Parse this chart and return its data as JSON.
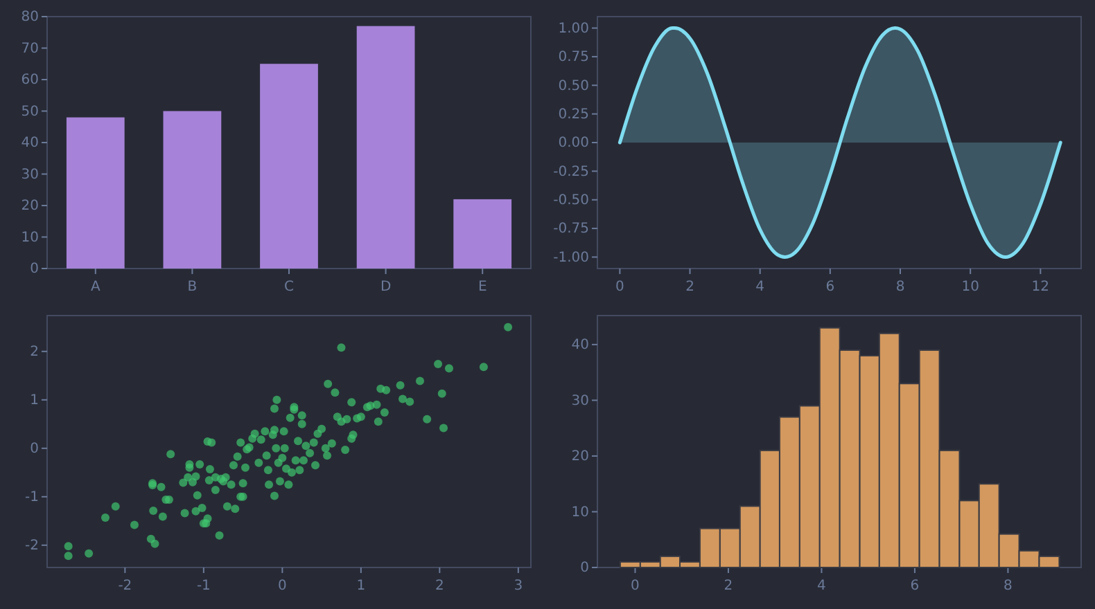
{
  "chart_data": [
    {
      "type": "bar",
      "categories": [
        "A",
        "B",
        "C",
        "D",
        "E"
      ],
      "values": [
        48,
        50,
        65,
        77,
        22
      ],
      "color": "#a682d8",
      "ylim": [
        0,
        80
      ],
      "yticks": [
        0,
        10,
        20,
        30,
        40,
        50,
        60,
        70,
        80
      ]
    },
    {
      "type": "area",
      "series": [
        {
          "color": "#7fdcf0",
          "x": [
            0,
            0.5,
            1,
            1.5,
            1.57,
            2,
            2.5,
            3,
            3.5,
            4,
            4.5,
            4.71,
            5,
            5.5,
            6,
            6.5,
            7,
            7.5,
            7.85,
            8,
            8.5,
            9,
            9.5,
            10,
            10.5,
            11,
            11.5,
            12,
            12.5,
            12.57
          ],
          "values": [
            0,
            0.48,
            0.84,
            1.0,
            1.0,
            0.91,
            0.6,
            0.14,
            -0.35,
            -0.76,
            -0.98,
            -1.0,
            -0.96,
            -0.71,
            -0.28,
            0.22,
            0.66,
            0.94,
            1.0,
            0.99,
            0.8,
            0.41,
            -0.08,
            -0.54,
            -0.88,
            -1.0,
            -0.88,
            -0.54,
            -0.07,
            0
          ]
        }
      ],
      "xlim": [
        -0.64,
        13.16
      ],
      "ylim": [
        -1.1,
        1.1
      ],
      "xticks": [
        0,
        2,
        4,
        6,
        8,
        10,
        12
      ],
      "yticks": [
        {
          "value": -1,
          "label": "-1.00"
        },
        {
          "value": -0.75,
          "label": "-0.75"
        },
        {
          "value": -0.5,
          "label": "-0.50"
        },
        {
          "value": -0.25,
          "label": "-0.25"
        },
        {
          "value": 0,
          "label": "0.00"
        },
        {
          "value": 0.25,
          "label": "0.25"
        },
        {
          "value": 0.5,
          "label": "0.50"
        },
        {
          "value": 0.75,
          "label": "0.75"
        },
        {
          "value": 1,
          "label": "1.00"
        }
      ]
    },
    {
      "type": "scatter",
      "color": "#3ec46d",
      "marker": "circle",
      "x": [
        -2.72,
        -2.72,
        -2.46,
        -2.25,
        -2.12,
        -1.88,
        -1.67,
        -1.62,
        -1.64,
        -1.65,
        -1.65,
        -1.54,
        -1.52,
        -1.48,
        -1.44,
        -1.42,
        -1.24,
        -1.26,
        -1.2,
        -1.18,
        -1.18,
        -1.14,
        -1.1,
        -1.08,
        -1.05,
        -1.1,
        -1.02,
        -1.0,
        -0.97,
        -0.95,
        -0.95,
        -0.9,
        -0.92,
        -0.93,
        -0.85,
        -0.85,
        -0.8,
        -0.78,
        -0.75,
        -0.72,
        -0.7,
        -0.65,
        -0.6,
        -0.62,
        -0.57,
        -0.53,
        -0.5,
        -0.5,
        -0.53,
        -0.47,
        -0.45,
        -0.42,
        -0.38,
        -0.35,
        -0.3,
        -0.27,
        -0.22,
        -0.2,
        -0.18,
        -0.17,
        -0.12,
        -0.1,
        -0.1,
        -0.07,
        -0.1,
        -0.08,
        -0.05,
        -0.03,
        0.0,
        0.02,
        0.03,
        0.05,
        0.08,
        0.1,
        0.12,
        0.15,
        0.15,
        0.17,
        0.2,
        0.22,
        0.25,
        0.25,
        0.27,
        0.3,
        0.35,
        0.4,
        0.42,
        0.45,
        0.5,
        0.55,
        0.57,
        0.58,
        0.63,
        0.67,
        0.7,
        0.75,
        0.75,
        0.8,
        0.82,
        0.88,
        0.88,
        0.9,
        0.95,
        1.0,
        1.08,
        1.12,
        1.2,
        1.22,
        1.25,
        1.32,
        1.3,
        1.5,
        1.53,
        1.62,
        1.75,
        1.84,
        1.98,
        2.03,
        2.05,
        2.12,
        2.56,
        2.87
      ],
      "values": [
        -2.02,
        -2.22,
        -2.17,
        -1.43,
        -1.2,
        -1.58,
        -1.87,
        -1.97,
        -1.29,
        -0.72,
        -0.76,
        -0.8,
        -1.41,
        -1.06,
        -1.06,
        -0.12,
        -1.34,
        -0.71,
        -0.6,
        -0.4,
        -0.33,
        -0.7,
        -0.58,
        -0.97,
        -0.33,
        -1.3,
        -1.23,
        -1.55,
        -1.55,
        -1.45,
        0.14,
        0.12,
        -0.43,
        -0.66,
        -0.6,
        -0.86,
        -1.8,
        -0.63,
        -0.68,
        -0.6,
        -1.2,
        -0.75,
        -1.25,
        -0.35,
        -0.17,
        0.12,
        -0.72,
        -1.0,
        -1.0,
        -0.4,
        -0.02,
        0.02,
        0.2,
        0.3,
        -0.3,
        0.18,
        0.35,
        -0.15,
        -0.45,
        -0.75,
        0.28,
        0.38,
        0.82,
        1.0,
        -0.98,
        0.0,
        -0.3,
        -0.68,
        -0.2,
        0.35,
        0.0,
        -0.42,
        -0.75,
        0.63,
        -0.5,
        0.85,
        0.8,
        -0.25,
        0.15,
        -0.45,
        0.68,
        0.5,
        -0.25,
        0.05,
        -0.1,
        0.12,
        -0.35,
        0.3,
        0.4,
        0.0,
        -0.15,
        1.33,
        0.1,
        1.15,
        0.65,
        2.08,
        0.55,
        -0.03,
        0.6,
        0.95,
        0.2,
        0.28,
        0.62,
        0.65,
        0.85,
        0.88,
        0.9,
        0.55,
        1.23,
        1.2,
        0.74,
        1.3,
        1.02,
        0.96,
        1.39,
        0.6,
        1.74,
        1.13,
        0.42,
        1.65,
        1.68,
        2.5
      ],
      "xlim": [
        -2.99,
        3.16
      ],
      "ylim": [
        -2.46,
        2.74
      ],
      "xticks": [
        -2,
        -1,
        0,
        1,
        2,
        3
      ],
      "yticks": [
        -2,
        -1,
        0,
        1,
        2
      ]
    },
    {
      "type": "histogram",
      "color": "#d4995e",
      "bins": [
        -0.32,
        0.11,
        0.54,
        0.96,
        1.39,
        1.82,
        2.25,
        2.68,
        3.1,
        3.53,
        3.96,
        4.39,
        4.82,
        5.24,
        5.67,
        6.1,
        6.53,
        6.96,
        7.38,
        7.81,
        8.24,
        8.67,
        9.1
      ],
      "values": [
        1,
        1,
        2,
        1,
        7,
        7,
        11,
        21,
        27,
        29,
        43,
        39,
        38,
        42,
        33,
        39,
        21,
        12,
        15,
        6,
        3,
        2
      ],
      "xlim": [
        -0.81,
        9.57
      ],
      "ylim": [
        0,
        45.2
      ],
      "xticks": [
        0,
        2,
        4,
        6,
        8
      ],
      "yticks": [
        0,
        10,
        20,
        30,
        40
      ]
    }
  ]
}
